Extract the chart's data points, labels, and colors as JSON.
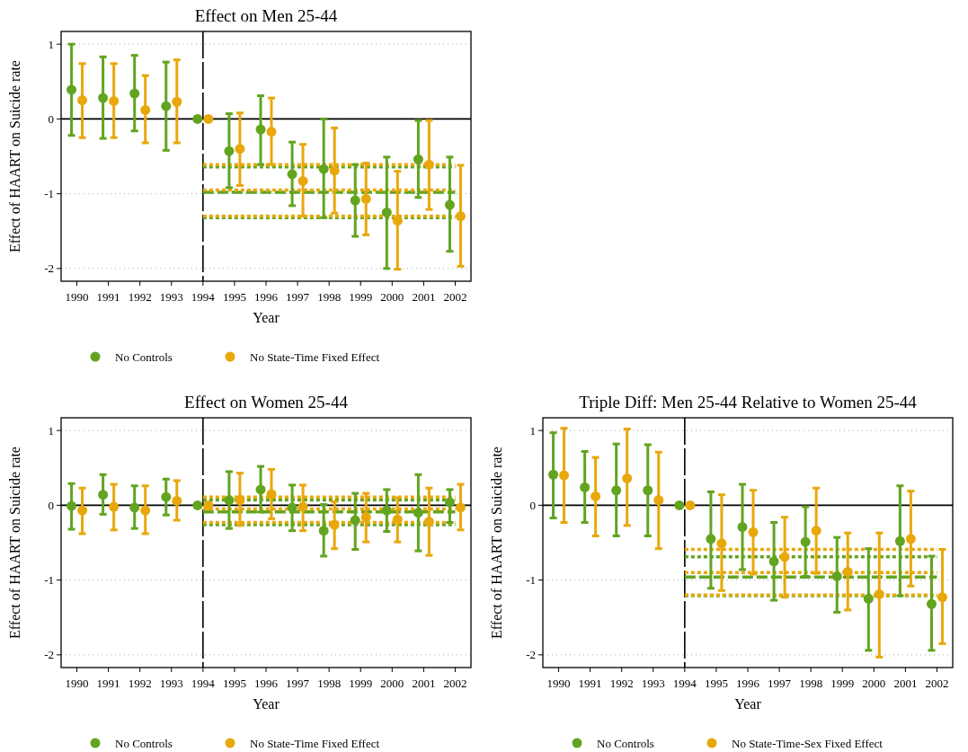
{
  "chart_data": [
    {
      "type": "scatter",
      "title": "Effect on Men 25-44",
      "xlabel": "Year",
      "ylabel": "Effect of HAART on Suicide rate",
      "categories": [
        "1990",
        "1991",
        "1992",
        "1993",
        "1994",
        "1995",
        "1996",
        "1997",
        "1998",
        "1999",
        "2000",
        "2001",
        "2002"
      ],
      "ylim": [
        -2.17,
        1.17
      ],
      "yticks": [
        -2,
        -1,
        0,
        1
      ],
      "grid": "y",
      "legend": "bottom",
      "marker": "circle",
      "series": [
        {
          "name": "No Controls",
          "color": "#62a420",
          "values": [
            0.39,
            0.28,
            0.34,
            0.17,
            0,
            -0.43,
            -0.14,
            -0.74,
            -0.67,
            -1.09,
            -1.25,
            -0.54,
            -1.15
          ],
          "errors": [
            [
              -0.22,
              1.0
            ],
            [
              -0.26,
              0.83
            ],
            [
              -0.16,
              0.85
            ],
            [
              -0.42,
              0.76
            ],
            null,
            [
              -0.92,
              0.07
            ],
            [
              -0.61,
              0.31
            ],
            [
              -1.16,
              -0.31
            ],
            [
              -1.32,
              0.0
            ],
            [
              -1.57,
              -0.61
            ],
            [
              -2.0,
              -0.51
            ],
            [
              -1.05,
              -0.02
            ],
            [
              -1.77,
              -0.51
            ]
          ]
        },
        {
          "name": "No State-Time Fixed Effect",
          "color": "#e8a80c",
          "values": [
            0.25,
            0.24,
            0.12,
            0.23,
            0,
            -0.4,
            -0.17,
            -0.83,
            -0.69,
            -1.07,
            -1.36,
            -0.61,
            -1.3
          ],
          "errors": [
            [
              -0.25,
              0.74
            ],
            [
              -0.25,
              0.74
            ],
            [
              -0.32,
              0.58
            ],
            [
              -0.32,
              0.79
            ],
            null,
            [
              -0.89,
              0.08
            ],
            [
              -0.61,
              0.28
            ],
            [
              -1.3,
              -0.34
            ],
            [
              -1.26,
              -0.12
            ],
            [
              -1.55,
              -0.59
            ],
            [
              -2.01,
              -0.7
            ],
            [
              -1.21,
              -0.02
            ],
            [
              -1.97,
              -0.62
            ]
          ]
        },
        {
          "type": "line",
          "color": "#62a420",
          "line_style": "dashed",
          "marker": "none",
          "values": [
            null,
            null,
            null,
            null,
            -0.98,
            -0.98,
            -0.98,
            -0.98,
            -0.98,
            -0.98,
            -0.98,
            -0.98,
            -0.98
          ]
        },
        {
          "type": "line",
          "color": "#62a420",
          "line_style": "dotted",
          "marker": "none",
          "values": [
            null,
            null,
            null,
            null,
            -0.64,
            -0.64,
            -0.64,
            -0.64,
            -0.64,
            -0.64,
            -0.64,
            -0.64,
            -0.64
          ]
        },
        {
          "type": "line",
          "color": "#62a420",
          "line_style": "dotted",
          "marker": "none",
          "values": [
            null,
            null,
            null,
            null,
            -1.32,
            -1.32,
            -1.32,
            -1.32,
            -1.32,
            -1.32,
            -1.32,
            -1.32,
            -1.32
          ]
        },
        {
          "type": "line",
          "color": "#e8a80c",
          "line_style": "dotted",
          "marker": "none",
          "values": [
            null,
            null,
            null,
            null,
            -0.95,
            -0.95,
            -0.95,
            -0.95,
            -0.95,
            -0.95,
            -0.95,
            -0.95,
            -0.95
          ]
        },
        {
          "type": "line",
          "color": "#e8a80c",
          "line_style": "dotted",
          "marker": "none",
          "values": [
            null,
            null,
            null,
            null,
            -0.61,
            -0.61,
            -0.61,
            -0.61,
            -0.61,
            -0.61,
            -0.61,
            -0.61,
            -0.61
          ]
        },
        {
          "type": "line",
          "color": "#e8a80c",
          "line_style": "dotted",
          "marker": "none",
          "values": [
            null,
            null,
            null,
            null,
            -1.3,
            -1.3,
            -1.3,
            -1.3,
            -1.3,
            -1.3,
            -1.3,
            -1.3,
            -1.3
          ]
        }
      ],
      "ref_lines": [
        {
          "axis": "y",
          "value": 0,
          "color": "#000000",
          "line_style": "solid"
        },
        {
          "axis": "x",
          "value": "1994",
          "color": "#000000",
          "line_style": "dashed"
        }
      ]
    },
    {
      "type": "scatter",
      "title": "Effect on Women 25-44",
      "xlabel": "Year",
      "ylabel": "Effect of HAART on Suicide rate",
      "categories": [
        "1990",
        "1991",
        "1992",
        "1993",
        "1994",
        "1995",
        "1996",
        "1997",
        "1998",
        "1999",
        "2000",
        "2001",
        "2002"
      ],
      "ylim": [
        -2.17,
        1.17
      ],
      "yticks": [
        -2,
        -1,
        0,
        1
      ],
      "grid": "y",
      "legend": "bottom",
      "marker": "circle",
      "series": [
        {
          "name": "No Controls",
          "color": "#62a420",
          "values": [
            -0.01,
            0.14,
            -0.03,
            0.11,
            0,
            0.07,
            0.21,
            -0.03,
            -0.34,
            -0.2,
            -0.07,
            -0.1,
            0.04
          ],
          "errors": [
            [
              -0.32,
              0.29
            ],
            [
              -0.12,
              0.41
            ],
            [
              -0.31,
              0.26
            ],
            [
              -0.13,
              0.35
            ],
            null,
            [
              -0.31,
              0.45
            ],
            [
              -0.09,
              0.52
            ],
            [
              -0.34,
              0.27
            ],
            [
              -0.68,
              0.01
            ],
            [
              -0.59,
              0.16
            ],
            [
              -0.35,
              0.21
            ],
            [
              -0.61,
              0.41
            ],
            [
              -0.23,
              0.21
            ]
          ]
        },
        {
          "name": "No State-Time Fixed Effect",
          "color": "#e8a80c",
          "values": [
            -0.07,
            -0.02,
            -0.07,
            0.06,
            0,
            0.07,
            0.15,
            -0.02,
            -0.26,
            -0.16,
            -0.19,
            -0.22,
            -0.03
          ],
          "errors": [
            [
              -0.38,
              0.23
            ],
            [
              -0.33,
              0.28
            ],
            [
              -0.38,
              0.26
            ],
            [
              -0.2,
              0.33
            ],
            null,
            [
              -0.27,
              0.43
            ],
            [
              -0.18,
              0.48
            ],
            [
              -0.34,
              0.27
            ],
            [
              -0.58,
              0.05
            ],
            [
              -0.49,
              0.16
            ],
            [
              -0.49,
              0.1
            ],
            [
              -0.67,
              0.23
            ],
            [
              -0.33,
              0.28
            ]
          ]
        },
        {
          "type": "line",
          "color": "#62a420",
          "line_style": "dashed",
          "marker": "none",
          "values": [
            null,
            null,
            null,
            null,
            -0.09,
            -0.09,
            -0.09,
            -0.09,
            -0.09,
            -0.09,
            -0.09,
            -0.09,
            -0.09
          ]
        },
        {
          "type": "line",
          "color": "#62a420",
          "line_style": "dotted",
          "marker": "none",
          "values": [
            null,
            null,
            null,
            null,
            0.07,
            0.07,
            0.07,
            0.07,
            0.07,
            0.07,
            0.07,
            0.07,
            0.07
          ]
        },
        {
          "type": "line",
          "color": "#62a420",
          "line_style": "dotted",
          "marker": "none",
          "values": [
            null,
            null,
            null,
            null,
            -0.26,
            -0.26,
            -0.26,
            -0.26,
            -0.26,
            -0.26,
            -0.26,
            -0.26,
            -0.26
          ]
        },
        {
          "type": "line",
          "color": "#e8a80c",
          "line_style": "dotted",
          "marker": "none",
          "values": [
            null,
            null,
            null,
            null,
            -0.05,
            -0.05,
            -0.05,
            -0.05,
            -0.05,
            -0.05,
            -0.05,
            -0.05,
            -0.05
          ]
        },
        {
          "type": "line",
          "color": "#e8a80c",
          "line_style": "dotted",
          "marker": "none",
          "values": [
            null,
            null,
            null,
            null,
            0.11,
            0.11,
            0.11,
            0.11,
            0.11,
            0.11,
            0.11,
            0.11,
            0.11
          ]
        },
        {
          "type": "line",
          "color": "#e8a80c",
          "line_style": "dotted",
          "marker": "none",
          "values": [
            null,
            null,
            null,
            null,
            -0.23,
            -0.23,
            -0.23,
            -0.23,
            -0.23,
            -0.23,
            -0.23,
            -0.23,
            -0.23
          ]
        }
      ],
      "ref_lines": [
        {
          "axis": "y",
          "value": 0,
          "color": "#000000",
          "line_style": "solid"
        },
        {
          "axis": "x",
          "value": "1994",
          "color": "#000000",
          "line_style": "dashed"
        }
      ]
    },
    {
      "type": "scatter",
      "title": "Triple Diff: Men 25-44 Relative to Women 25-44",
      "xlabel": "Year",
      "ylabel": "Effect of HAART on Suicide rate",
      "categories": [
        "1990",
        "1991",
        "1992",
        "1993",
        "1994",
        "1995",
        "1996",
        "1997",
        "1998",
        "1999",
        "2000",
        "2001",
        "2002"
      ],
      "ylim": [
        -2.17,
        1.17
      ],
      "yticks": [
        -2,
        -1,
        0,
        1
      ],
      "grid": "y",
      "legend": "bottom",
      "marker": "circle",
      "series": [
        {
          "name": "No Controls",
          "color": "#62a420",
          "values": [
            0.41,
            0.24,
            0.2,
            0.2,
            0,
            -0.45,
            -0.29,
            -0.75,
            -0.49,
            -0.95,
            -1.25,
            -0.48,
            -1.32
          ],
          "errors": [
            [
              -0.17,
              0.97
            ],
            [
              -0.23,
              0.72
            ],
            [
              -0.41,
              0.82
            ],
            [
              -0.41,
              0.81
            ],
            null,
            [
              -1.11,
              0.18
            ],
            [
              -0.86,
              0.28
            ],
            [
              -1.27,
              -0.23
            ],
            [
              -0.95,
              -0.02
            ],
            [
              -1.43,
              -0.43
            ],
            [
              -1.94,
              -0.58
            ],
            [
              -1.21,
              0.26
            ],
            [
              -1.94,
              -0.68
            ]
          ]
        },
        {
          "name": "No State-Time-Sex Fixed Effect",
          "color": "#e8a80c",
          "values": [
            0.4,
            0.12,
            0.36,
            0.07,
            0,
            -0.51,
            -0.36,
            -0.69,
            -0.34,
            -0.89,
            -1.19,
            -0.45,
            -1.23
          ],
          "errors": [
            [
              -0.23,
              1.03
            ],
            [
              -0.41,
              0.64
            ],
            [
              -0.27,
              1.02
            ],
            [
              -0.58,
              0.71
            ],
            null,
            [
              -1.14,
              0.14
            ],
            [
              -0.92,
              0.2
            ],
            [
              -1.23,
              -0.16
            ],
            [
              -0.91,
              0.23
            ],
            [
              -1.4,
              -0.37
            ],
            [
              -2.03,
              -0.37
            ],
            [
              -1.08,
              0.19
            ],
            [
              -1.85,
              -0.59
            ]
          ]
        },
        {
          "type": "line",
          "color": "#62a420",
          "line_style": "dashed",
          "marker": "none",
          "values": [
            null,
            null,
            null,
            null,
            -0.96,
            -0.96,
            -0.96,
            -0.96,
            -0.96,
            -0.96,
            -0.96,
            -0.96,
            -0.96
          ]
        },
        {
          "type": "line",
          "color": "#62a420",
          "line_style": "dotted",
          "marker": "none",
          "values": [
            null,
            null,
            null,
            null,
            -0.69,
            -0.69,
            -0.69,
            -0.69,
            -0.69,
            -0.69,
            -0.69,
            -0.69,
            -0.69
          ]
        },
        {
          "type": "line",
          "color": "#62a420",
          "line_style": "dotted",
          "marker": "none",
          "values": [
            null,
            null,
            null,
            null,
            -1.21,
            -1.21,
            -1.21,
            -1.21,
            -1.21,
            -1.21,
            -1.21,
            -1.21,
            -1.21
          ]
        },
        {
          "type": "line",
          "color": "#e8a80c",
          "line_style": "dotted",
          "marker": "none",
          "values": [
            null,
            null,
            null,
            null,
            -0.9,
            -0.9,
            -0.9,
            -0.9,
            -0.9,
            -0.9,
            -0.9,
            -0.9,
            -0.9
          ]
        },
        {
          "type": "line",
          "color": "#e8a80c",
          "line_style": "dotted",
          "marker": "none",
          "values": [
            null,
            null,
            null,
            null,
            -0.59,
            -0.59,
            -0.59,
            -0.59,
            -0.59,
            -0.59,
            -0.59,
            -0.59,
            -0.59
          ]
        },
        {
          "type": "line",
          "color": "#e8a80c",
          "line_style": "dotted",
          "marker": "none",
          "values": [
            null,
            null,
            null,
            null,
            -1.2,
            -1.2,
            -1.2,
            -1.2,
            -1.2,
            -1.2,
            -1.2,
            -1.2,
            -1.2
          ]
        }
      ],
      "ref_lines": [
        {
          "axis": "y",
          "value": 0,
          "color": "#000000",
          "line_style": "solid"
        },
        {
          "axis": "x",
          "value": "1994",
          "color": "#000000",
          "line_style": "dashed"
        }
      ]
    }
  ]
}
